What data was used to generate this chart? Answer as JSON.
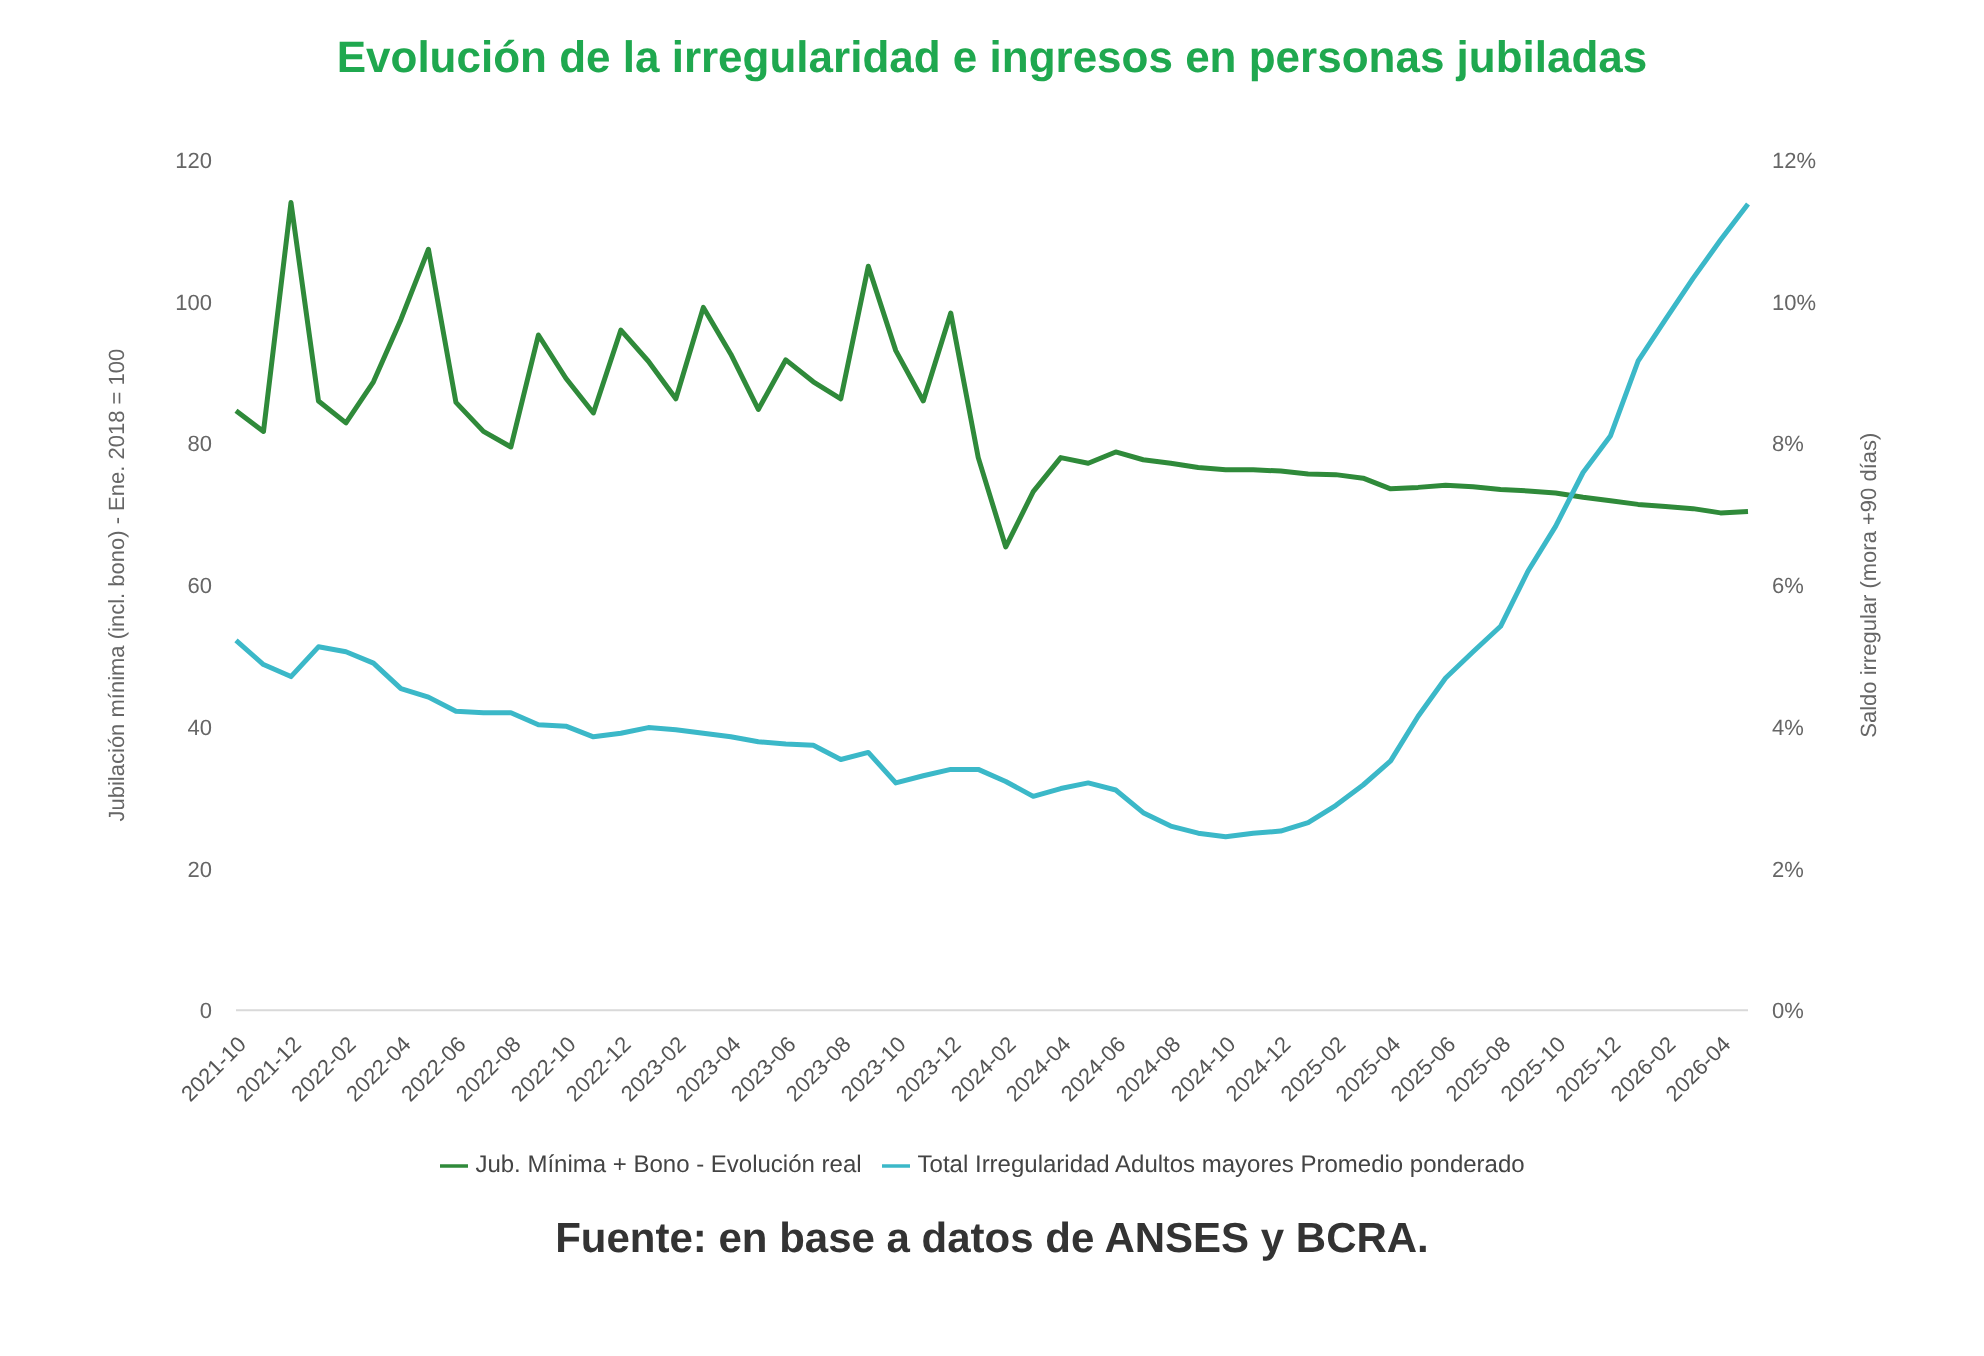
{
  "chart_data": {
    "type": "line",
    "title": "Evolución de la irregularidad e ingresos en personas jubiladas",
    "ylabel": "Jubilación mínima (incl. bono) - Ene. 2018 = 100",
    "y2label": "Saldo irregular (mora +90 días)",
    "categories": [
      "2021-10",
      null,
      "2021-12",
      null,
      "2022-02",
      null,
      "2022-04",
      null,
      "2022-06",
      null,
      "2022-08",
      null,
      "2022-10",
      null,
      "2022-12",
      null,
      "2023-02",
      null,
      "2023-04",
      null,
      "2023-06",
      null,
      "2023-08",
      null,
      "2023-10",
      null,
      "2023-12",
      null,
      "2024-02",
      null,
      "2024-04",
      null,
      "2024-06",
      null,
      "2024-08",
      null,
      "2024-10",
      null,
      "2024-12",
      null,
      "2025-02",
      null,
      "2025-04",
      null,
      "2025-06",
      null,
      "2025-08",
      null,
      "2025-10",
      null,
      "2025-12",
      null,
      "2026-02",
      null,
      "2026-04",
      null
    ],
    "series": [
      {
        "name": "Jub. Mínima + Bono - Evolución real",
        "color": "#2f8a3a",
        "values": [
          84.6,
          81.7,
          114,
          86,
          82.9,
          88.7,
          97.5,
          107.4,
          85.8,
          81.7,
          79.5,
          95.3,
          89.2,
          84.3,
          96,
          91.6,
          86.3,
          99.2,
          92.6,
          84.8,
          91.8,
          88.7,
          86.3,
          105,
          93.1,
          86,
          98.4,
          78,
          65.4,
          73.2,
          78,
          77.2,
          78.8,
          77.7,
          77.2,
          76.6,
          76.3,
          76.3,
          76.1,
          75.7,
          75.6,
          75.1,
          73.6,
          73.8,
          74.1,
          73.9,
          73.5,
          73.3,
          73,
          72.4,
          71.9,
          71.4,
          71.1,
          70.8,
          70.2,
          70.4
        ]
      },
      {
        "name": "Total Irregularidad Adultos mayores Promedio ponderado",
        "color": "#3bb8c8",
        "axis": "y2",
        "values": [
          5.22,
          4.88,
          4.71,
          5.13,
          5.06,
          4.9,
          4.54,
          4.42,
          4.22,
          4.2,
          4.2,
          4.03,
          4.01,
          3.86,
          3.91,
          3.99,
          3.96,
          3.91,
          3.86,
          3.79,
          3.76,
          3.74,
          3.54,
          3.64,
          3.21,
          3.31,
          3.4,
          3.4,
          3.23,
          3.02,
          3.13,
          3.21,
          3.11,
          2.79,
          2.6,
          2.5,
          2.45,
          2.5,
          2.53,
          2.65,
          2.89,
          3.18,
          3.52,
          4.15,
          4.69,
          5.06,
          5.42,
          6.2,
          6.83,
          7.59,
          8.11,
          9.16,
          9.75,
          10.33,
          10.87,
          11.38
        ]
      }
    ],
    "ylim": [
      0,
      120
    ],
    "yticks": [
      0,
      20,
      40,
      60,
      80,
      100,
      120
    ],
    "y2lim": [
      0,
      12
    ],
    "y2ticks": [
      {
        "value": 0,
        "label": "0%"
      },
      {
        "value": 2,
        "label": "2%"
      },
      {
        "value": 4,
        "label": "4%"
      },
      {
        "value": 6,
        "label": "6%"
      },
      {
        "value": 8,
        "label": "8%"
      },
      {
        "value": 10,
        "label": "10%"
      },
      {
        "value": 12,
        "label": "12%"
      }
    ],
    "legend": "bottom",
    "grid": false,
    "marker": "none",
    "line_style": "solid",
    "annotations": [
      "Fuente: en base a datos de ANSES y BCRA."
    ]
  }
}
